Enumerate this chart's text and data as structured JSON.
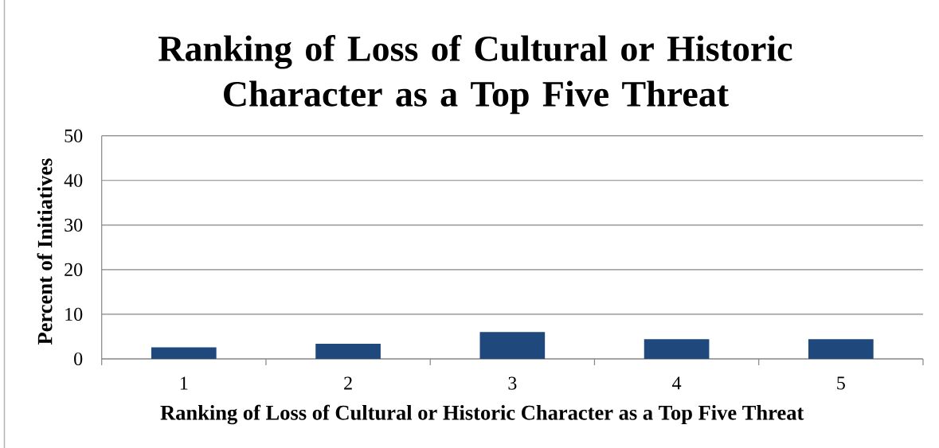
{
  "chart_data": {
    "type": "bar",
    "title": "Ranking of Loss of Cultural or Historic Character as a Top Five Threat",
    "xlabel": "Ranking of Loss of Cultural or Historic Character as a Top Five Threat",
    "ylabel": "Percent of Initiatives",
    "categories": [
      "1",
      "2",
      "3",
      "4",
      "5"
    ],
    "values": [
      2.6,
      3.4,
      6.0,
      4.4,
      4.4
    ],
    "color": "#1f497d",
    "ylim": [
      0,
      50
    ],
    "yticks": [
      0,
      10,
      20,
      30,
      40,
      50
    ],
    "grid": "y"
  }
}
